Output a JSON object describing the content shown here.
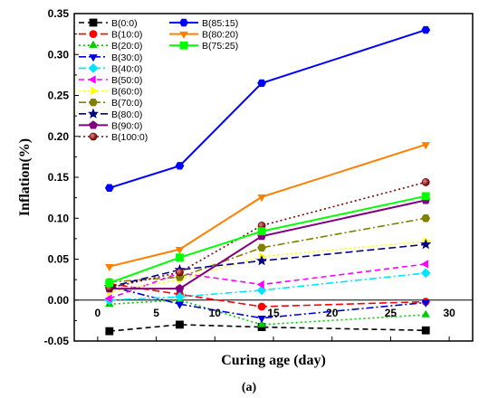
{
  "chart_data": {
    "type": "line",
    "xlabel": "Curing age (day)",
    "ylabel": "Inflation(%)",
    "sublabel": "(a)",
    "xlim": [
      -2,
      32
    ],
    "ylim": [
      -0.05,
      0.35
    ],
    "xticks": [
      0,
      5,
      10,
      15,
      20,
      25,
      30
    ],
    "yticks": [
      -0.05,
      0.0,
      0.05,
      0.1,
      0.15,
      0.2,
      0.25,
      0.3,
      0.35
    ],
    "ytick_labels": [
      "-0.05",
      "0.00",
      "0.05",
      "0.10",
      "0.15",
      "0.20",
      "0.25",
      "0.30",
      "0.35"
    ],
    "xtick_labels": [
      "0",
      "5",
      "10",
      "15",
      "20",
      "25",
      "30"
    ],
    "x": [
      1,
      7,
      14,
      28
    ],
    "series": [
      {
        "name": "B(0:0)",
        "color": "#000000",
        "marker": "square",
        "dash": "6,4",
        "values": [
          -0.038,
          -0.03,
          -0.033,
          -0.037
        ]
      },
      {
        "name": "B(10:0)",
        "color": "#ff0000",
        "marker": "circle",
        "dash": "8,4",
        "values": [
          0.02,
          0.007,
          -0.008,
          -0.002
        ]
      },
      {
        "name": "B(20:0)",
        "color": "#00cc00",
        "marker": "triangle-up",
        "dash": "2,3",
        "values": [
          -0.005,
          0.0,
          -0.03,
          -0.018
        ]
      },
      {
        "name": "B(30:0)",
        "color": "#0000dd",
        "marker": "triangle-down",
        "dash": "8,3,2,3",
        "values": [
          0.017,
          -0.005,
          -0.022,
          -0.003
        ]
      },
      {
        "name": "B(40:0)",
        "color": "#00e5ff",
        "marker": "diamond",
        "dash": "8,3,2,3",
        "values": [
          0.0,
          0.004,
          0.012,
          0.033
        ]
      },
      {
        "name": "B(50:0)",
        "color": "#ff00ff",
        "marker": "triangle-left",
        "dash": "6,4",
        "values": [
          0.002,
          0.033,
          0.019,
          0.044
        ]
      },
      {
        "name": "B(60:0)",
        "color": "#ffff00",
        "marker": "triangle-right",
        "dash": "2,3",
        "values": [
          0.01,
          0.025,
          0.053,
          0.072
        ]
      },
      {
        "name": "B(70:0)",
        "color": "#808000",
        "marker": "hexagon",
        "dash": "8,3,2,3",
        "values": [
          0.022,
          0.028,
          0.064,
          0.1
        ]
      },
      {
        "name": "B(80:0)",
        "color": "#000080",
        "marker": "star",
        "dash": "8,4",
        "values": [
          0.016,
          0.037,
          0.048,
          0.068
        ]
      },
      {
        "name": "B(90:0)",
        "color": "#800080",
        "marker": "pentagon",
        "dash": "",
        "values": [
          0.014,
          0.014,
          0.078,
          0.122
        ]
      },
      {
        "name": "B(100:0)",
        "color": "#800000",
        "marker": "sphere",
        "dash": "2,3",
        "values": [
          0.015,
          0.034,
          0.091,
          0.144
        ]
      },
      {
        "name": "B(85:15)",
        "color": "#0000ff",
        "marker": "hexagon",
        "dash": "",
        "values": [
          0.137,
          0.164,
          0.265,
          0.33
        ]
      },
      {
        "name": "B(80:20)",
        "color": "#ff8000",
        "marker": "triangle-down",
        "dash": "",
        "values": [
          0.041,
          0.062,
          0.126,
          0.19
        ]
      },
      {
        "name": "B(75:25)",
        "color": "#00ff00",
        "marker": "square",
        "dash": "",
        "values": [
          0.021,
          0.052,
          0.084,
          0.127
        ]
      }
    ]
  }
}
